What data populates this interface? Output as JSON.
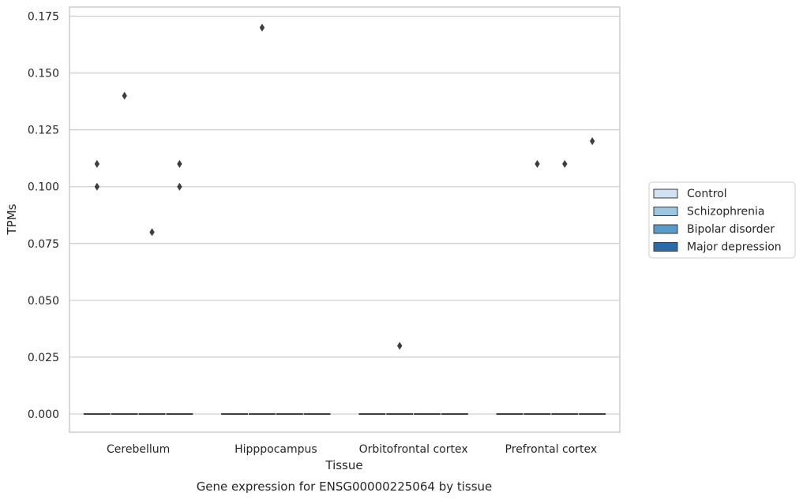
{
  "chart_data": {
    "type": "box",
    "title": "Gene expression for ENSG00000225064 by tissue",
    "xlabel": "Tissue",
    "ylabel": "TPMs",
    "ylim": [
      -0.008,
      0.179
    ],
    "yticks": [
      "0.000",
      "0.025",
      "0.050",
      "0.075",
      "0.100",
      "0.125",
      "0.150",
      "0.175"
    ],
    "categories": [
      "Cerebellum",
      "Hipppocampus",
      "Orbitofrontal cortex",
      "Prefrontal cortex"
    ],
    "grid": "horizontal",
    "legend_position": "right",
    "series": [
      {
        "name": "Control",
        "color": "#d1e2f2",
        "median": [
          0,
          0,
          0,
          0
        ],
        "outliers": [
          [
            0.11,
            0.1
          ],
          [],
          [],
          []
        ]
      },
      {
        "name": "Schizophrenia",
        "color": "#9dc6e0",
        "median": [
          0,
          0,
          0,
          0
        ],
        "outliers": [
          [
            0.14
          ],
          [
            0.17
          ],
          [
            0.03
          ],
          [
            0.11
          ]
        ]
      },
      {
        "name": "Bipolar disorder",
        "color": "#5a9ac9",
        "median": [
          0,
          0,
          0,
          0
        ],
        "outliers": [
          [
            0.08
          ],
          [],
          [],
          [
            0.11
          ]
        ]
      },
      {
        "name": "Major depression",
        "color": "#2b6ba8",
        "median": [
          0,
          0,
          0,
          0
        ],
        "outliers": [
          [
            0.11,
            0.1
          ],
          [],
          [],
          [
            0.12
          ]
        ]
      }
    ]
  }
}
